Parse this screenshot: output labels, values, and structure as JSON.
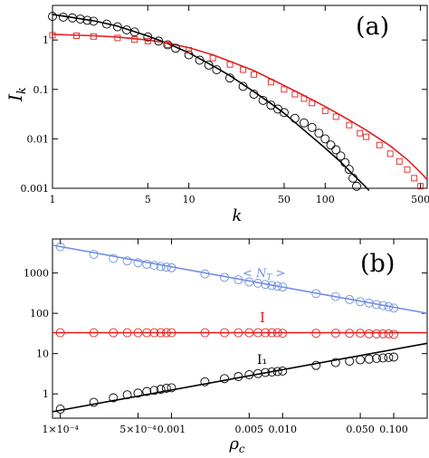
{
  "chart_data": [
    {
      "type": "scatter",
      "panel_label": "(a)",
      "xlabel": "k",
      "ylabel": "I",
      "ylabel_sub": "k",
      "x_scale": "log",
      "y_scale": "log",
      "xlim": [
        1,
        560
      ],
      "ylim": [
        0.001,
        5
      ],
      "x_ticks": [
        1,
        5,
        10,
        50,
        100,
        500
      ],
      "x_tick_labels": [
        "1",
        "5",
        "10",
        "50",
        "100",
        "500"
      ],
      "y_ticks": [
        0.001,
        0.01,
        0.1,
        1
      ],
      "y_tick_labels": [
        "0.001",
        "0.01",
        "0.1",
        "1"
      ],
      "series": [
        {
          "marker": "circle",
          "color": "#000000",
          "x": [
            1,
            1.2,
            1.4,
            1.6,
            1.8,
            2,
            2.5,
            3,
            3.5,
            4,
            5,
            6,
            7,
            8,
            10,
            12,
            14,
            16,
            20,
            25,
            30,
            35,
            40,
            45,
            50,
            60,
            70,
            80,
            90,
            100,
            110,
            120,
            130,
            140,
            150,
            160,
            170
          ],
          "y": [
            3.0,
            2.9,
            2.8,
            2.65,
            2.5,
            2.4,
            2.1,
            1.85,
            1.6,
            1.45,
            1.15,
            0.95,
            0.8,
            0.68,
            0.5,
            0.39,
            0.31,
            0.25,
            0.17,
            0.115,
            0.08,
            0.06,
            0.048,
            0.04,
            0.034,
            0.026,
            0.021,
            0.017,
            0.013,
            0.01,
            0.0075,
            0.006,
            0.0045,
            0.0033,
            0.0024,
            0.0016,
            0.0011
          ],
          "fit": {
            "x": [
              1,
              2,
              3,
              5,
              7,
              10,
              15,
              20,
              30,
              40,
              50,
              70,
              100,
              130,
              160,
              190,
              210
            ],
            "y": [
              3.3,
              2.45,
              1.9,
              1.2,
              0.85,
              0.55,
              0.3,
              0.19,
              0.09,
              0.052,
              0.033,
              0.015,
              0.0065,
              0.0034,
              0.0019,
              0.0012,
              0.0009
            ]
          }
        },
        {
          "marker": "square",
          "color": "#e02020",
          "x": [
            1,
            1.5,
            2,
            3,
            4,
            5,
            7,
            10,
            15,
            20,
            25,
            30,
            40,
            50,
            60,
            70,
            80,
            100,
            120,
            150,
            180,
            200,
            250,
            300,
            350,
            400,
            450,
            500
          ],
          "y": [
            1.25,
            1.22,
            1.18,
            1.1,
            1.02,
            0.95,
            0.8,
            0.62,
            0.43,
            0.32,
            0.25,
            0.2,
            0.14,
            0.1,
            0.08,
            0.065,
            0.053,
            0.037,
            0.028,
            0.019,
            0.013,
            0.011,
            0.0075,
            0.005,
            0.0035,
            0.0024,
            0.0016,
            0.0011
          ],
          "fit": {
            "x": [
              1,
              2,
              3,
              5,
              7,
              10,
              15,
              20,
              30,
              50,
              70,
              100,
              150,
              200,
              300,
              400,
              500,
              560
            ],
            "y": [
              1.3,
              1.22,
              1.15,
              1.0,
              0.87,
              0.7,
              0.5,
              0.37,
              0.24,
              0.12,
              0.075,
              0.045,
              0.024,
              0.015,
              0.0072,
              0.0038,
              0.0021,
              0.0015
            ]
          }
        }
      ]
    },
    {
      "type": "scatter",
      "panel_label": "(b)",
      "xlabel": "ρ",
      "xlabel_sub": "c",
      "x_scale": "log",
      "y_scale": "log",
      "xlim": [
        8.5e-05,
        0.2
      ],
      "ylim": [
        0.25,
        7000
      ],
      "x_ticks": [
        0.0001,
        0.0005,
        0.001,
        0.005,
        0.01,
        0.05,
        0.1
      ],
      "x_tick_labels": [
        "1×10⁻⁴",
        "5×10⁻⁴",
        "0.001",
        "0.005",
        "0.010",
        "0.050",
        "0.100"
      ],
      "y_ticks": [
        1,
        10,
        100,
        1000
      ],
      "y_tick_labels": [
        "1",
        "10",
        "100",
        "1000"
      ],
      "series": [
        {
          "name": "< N_T >",
          "marker": "circle",
          "color": "#6f8fe0",
          "x": [
            0.0001,
            0.0002,
            0.0003,
            0.0004,
            0.0005,
            0.0006,
            0.0007,
            0.0008,
            0.0009,
            0.001,
            0.002,
            0.003,
            0.004,
            0.005,
            0.006,
            0.007,
            0.008,
            0.009,
            0.01,
            0.02,
            0.03,
            0.04,
            0.05,
            0.06,
            0.07,
            0.08,
            0.09,
            0.1
          ],
          "y": [
            4500,
            2900,
            2300,
            2000,
            1800,
            1650,
            1550,
            1450,
            1400,
            1350,
            950,
            780,
            680,
            600,
            560,
            520,
            490,
            470,
            450,
            310,
            260,
            220,
            195,
            180,
            165,
            155,
            145,
            135
          ],
          "fit": {
            "x": [
              8.5e-05,
              0.2
            ],
            "y": [
              4900,
              100
            ]
          }
        },
        {
          "name": "I",
          "marker": "circle",
          "color": "#e02020",
          "x": [
            0.0001,
            0.0002,
            0.0003,
            0.0004,
            0.0005,
            0.0006,
            0.0007,
            0.0008,
            0.0009,
            0.001,
            0.002,
            0.003,
            0.004,
            0.005,
            0.006,
            0.007,
            0.008,
            0.009,
            0.01,
            0.02,
            0.03,
            0.04,
            0.05,
            0.06,
            0.07,
            0.08,
            0.09,
            0.1
          ],
          "y": [
            33,
            33,
            33,
            33,
            33,
            33,
            33,
            33,
            33,
            33,
            33,
            33,
            33,
            33,
            33,
            33,
            33,
            33,
            32,
            32,
            32,
            32,
            32,
            31,
            31,
            31,
            31,
            30
          ],
          "fit": {
            "x": [
              8.5e-05,
              0.2
            ],
            "y": [
              33,
              33
            ]
          }
        },
        {
          "name": "I₁",
          "marker": "circle",
          "color": "#000000",
          "x": [
            0.0001,
            0.0002,
            0.0003,
            0.0004,
            0.0005,
            0.0006,
            0.0007,
            0.0008,
            0.0009,
            0.001,
            0.002,
            0.003,
            0.004,
            0.005,
            0.006,
            0.007,
            0.008,
            0.009,
            0.01,
            0.02,
            0.03,
            0.04,
            0.05,
            0.06,
            0.07,
            0.08,
            0.09,
            0.1
          ],
          "y": [
            0.42,
            0.62,
            0.8,
            0.95,
            1.05,
            1.15,
            1.22,
            1.3,
            1.38,
            1.42,
            2.0,
            2.4,
            2.7,
            3.0,
            3.2,
            3.4,
            3.5,
            3.6,
            3.7,
            5.1,
            6.0,
            6.5,
            7.0,
            7.3,
            7.6,
            7.8,
            8.0,
            8.2
          ],
          "fit": {
            "x": [
              8.5e-05,
              0.2
            ],
            "y": [
              0.36,
              18
            ]
          }
        }
      ]
    }
  ]
}
